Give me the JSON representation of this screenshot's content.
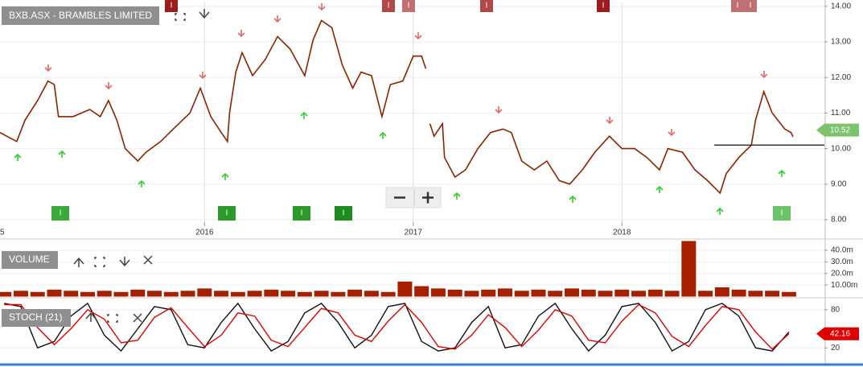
{
  "chart_data": [
    {
      "type": "line",
      "title": "BXB.ASX - BRAMBLES LIMITED",
      "x": [
        2015.02,
        2015.1,
        2015.14,
        2015.2,
        2015.25,
        2015.28,
        2015.3,
        2015.37,
        2015.45,
        2015.5,
        2015.54,
        2015.58,
        2015.62,
        2015.68,
        2015.72,
        2015.79,
        2015.85,
        2015.93,
        2015.98,
        2016.03,
        2016.08,
        2016.11,
        2016.12,
        2016.15,
        2016.18,
        2016.23,
        2016.29,
        2016.35,
        2016.41,
        2016.48,
        2016.52,
        2016.56,
        2016.61,
        2016.66,
        2016.71,
        2016.75,
        2016.8,
        2016.85,
        2016.89,
        2016.95,
        2017.0,
        2017.04,
        2017.06,
        2017.07,
        2017.08,
        2017.1,
        2017.14,
        2017.15,
        2017.2,
        2017.25,
        2017.31,
        2017.37,
        2017.43,
        2017.47,
        2017.52,
        2017.58,
        2017.64,
        2017.7,
        2017.75,
        2017.81,
        2017.87,
        2017.94,
        2018.0,
        2018.06,
        2018.12,
        2018.18,
        2018.22,
        2018.29,
        2018.35,
        2018.41,
        2018.47,
        2018.5,
        2018.56,
        2018.62,
        2018.64,
        2018.68,
        2018.72,
        2018.78,
        2018.81,
        2018.82
      ],
      "series": [
        {
          "color": "#8b2200",
          "values": [
            10.45,
            10.2,
            10.8,
            11.35,
            11.9,
            11.8,
            10.9,
            10.9,
            11.1,
            10.9,
            11.35,
            10.8,
            10.0,
            9.65,
            9.9,
            10.2,
            10.55,
            11.0,
            11.7,
            10.9,
            10.45,
            10.2,
            11.0,
            12.15,
            12.7,
            12.05,
            12.5,
            13.15,
            12.8,
            12.05,
            13.05,
            13.6,
            13.4,
            12.35,
            11.7,
            12.15,
            12.05,
            10.9,
            11.8,
            11.9,
            12.6,
            12.6,
            12.25,
            null,
            10.7,
            10.35,
            10.7,
            9.75,
            9.2,
            9.4,
            10.0,
            10.45,
            10.55,
            10.45,
            9.65,
            9.4,
            9.65,
            9.1,
            9.0,
            9.4,
            9.9,
            10.35,
            10.0,
            10.0,
            9.75,
            9.4,
            10.0,
            9.9,
            9.4,
            9.1,
            8.75,
            9.3,
            9.75,
            10.1,
            10.8,
            11.6,
            11.0,
            10.55,
            10.45,
            10.33
          ]
        }
      ],
      "xlim": [
        2015.02,
        2018.97
      ],
      "xticks": [
        {
          "value": 2015,
          "label": "5"
        },
        2016,
        2017,
        2018
      ],
      "ylim": [
        7.48,
        14.11
      ],
      "yticks": [
        {
          "value": 8,
          "label": "8.00"
        },
        {
          "value": 9,
          "label": "9.00"
        },
        {
          "value": 10,
          "label": "10.00"
        },
        {
          "value": 11,
          "label": "11.00"
        },
        {
          "value": 12,
          "label": "12.00"
        },
        {
          "value": 13,
          "label": "13.00"
        },
        {
          "value": 14,
          "label": "14.00"
        }
      ],
      "grid": true,
      "last_price": 10.52,
      "reference_line": 10.1,
      "event_badge_label": "I"
    },
    {
      "type": "bar",
      "title": "VOLUME",
      "color": "#a52000",
      "x": [
        2015.04,
        2015.12,
        2015.2,
        2015.28,
        2015.36,
        2015.44,
        2015.52,
        2015.6,
        2015.68,
        2015.76,
        2015.84,
        2015.92,
        2016.0,
        2016.08,
        2016.16,
        2016.24,
        2016.32,
        2016.4,
        2016.48,
        2016.56,
        2016.64,
        2016.72,
        2016.8,
        2016.88,
        2016.96,
        2017.04,
        2017.12,
        2017.2,
        2017.28,
        2017.36,
        2017.44,
        2017.52,
        2017.6,
        2017.68,
        2017.76,
        2017.84,
        2017.92,
        2018.0,
        2018.08,
        2018.16,
        2018.24,
        2018.32,
        2018.4,
        2018.48,
        2018.56,
        2018.64,
        2018.72,
        2018.8
      ],
      "values": [
        4,
        5,
        4,
        6,
        5,
        4,
        5,
        4,
        6,
        5,
        4,
        5,
        7,
        5,
        4,
        5,
        6,
        5,
        4,
        5,
        4,
        6,
        5,
        4,
        13,
        9,
        7,
        6,
        5,
        6,
        7,
        5,
        6,
        5,
        7,
        6,
        5,
        6,
        5,
        6,
        5,
        48,
        5,
        8,
        6,
        5,
        5,
        4
      ],
      "xlim": [
        2015.02,
        2018.97
      ],
      "ylim": [
        0,
        49
      ],
      "yticks": [
        {
          "value": 10,
          "label": "10.00m"
        },
        {
          "value": 20,
          "label": "20.0m"
        },
        {
          "value": 30,
          "label": "30.0m"
        },
        {
          "value": 40,
          "label": "40.0m"
        }
      ]
    },
    {
      "type": "line",
      "title": "STOCH (21)",
      "x": [
        2015.04,
        2015.12,
        2015.2,
        2015.28,
        2015.36,
        2015.44,
        2015.52,
        2015.6,
        2015.68,
        2015.76,
        2015.84,
        2015.92,
        2016.0,
        2016.08,
        2016.16,
        2016.24,
        2016.32,
        2016.4,
        2016.48,
        2016.56,
        2016.64,
        2016.72,
        2016.8,
        2016.88,
        2016.96,
        2017.04,
        2017.12,
        2017.2,
        2017.28,
        2017.36,
        2017.44,
        2017.52,
        2017.6,
        2017.68,
        2017.76,
        2017.84,
        2017.92,
        2018.0,
        2018.08,
        2018.16,
        2018.24,
        2018.32,
        2018.4,
        2018.48,
        2018.56,
        2018.64,
        2018.72,
        2018.8
      ],
      "series": [
        {
          "color": "#111111",
          "values": [
            90,
            85,
            20,
            30,
            70,
            90,
            40,
            15,
            50,
            85,
            80,
            25,
            20,
            60,
            90,
            50,
            15,
            30,
            75,
            90,
            60,
            20,
            40,
            85,
            90,
            30,
            15,
            20,
            60,
            85,
            20,
            25,
            70,
            90,
            50,
            15,
            40,
            85,
            90,
            60,
            15,
            30,
            80,
            90,
            70,
            20,
            15,
            45
          ]
        },
        {
          "color": "#e00000",
          "values": [
            88,
            88,
            52,
            25,
            50,
            80,
            65,
            28,
            32,
            68,
            83,
            52,
            22,
            40,
            75,
            70,
            32,
            22,
            52,
            82,
            75,
            40,
            30,
            62,
            88,
            60,
            22,
            18,
            40,
            72,
            52,
            22,
            48,
            80,
            70,
            32,
            28,
            62,
            88,
            75,
            38,
            22,
            55,
            85,
            80,
            45,
            18,
            42.16
          ]
        }
      ],
      "xlim": [
        2015.02,
        2018.97
      ],
      "ylim": [
        0,
        100
      ],
      "yticks": [
        20,
        80
      ],
      "last_value": 42.16
    }
  ]
}
